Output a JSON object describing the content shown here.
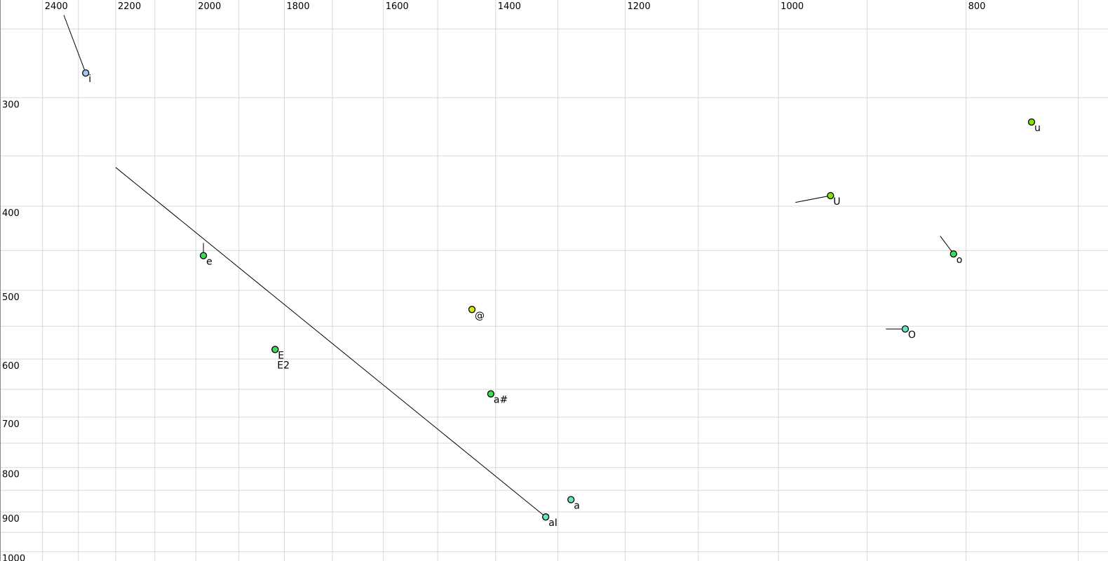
{
  "chart_data": {
    "type": "scatter",
    "title": "",
    "xlabel": "",
    "ylabel": "",
    "grid": true,
    "legend": false,
    "background": "#ffffff",
    "grid_color": "#d8d8d8",
    "axis_edge_color": "#888888",
    "point_outline": "#000000",
    "trajectory_color": "#000000",
    "x_axis": {
      "scale": "log",
      "reversed": true,
      "min": 675,
      "max": 2525,
      "tick_side": "top",
      "tick_labels": [
        2400,
        2200,
        2000,
        1800,
        1600,
        1400,
        1200,
        1000,
        800
      ],
      "gridline_step": 100,
      "gridline_min": 700,
      "gridline_max": 2400
    },
    "y_axis": {
      "scale": "log",
      "inverted": true,
      "min": 231,
      "max": 1025,
      "tick_side": "left",
      "tick_labels": [
        300,
        400,
        500,
        600,
        700,
        800,
        900,
        1000
      ],
      "gridline_step": 50,
      "gridline_min": 250,
      "gridline_max": 1000
    },
    "palette": {
      "blue": "#a3c7f0",
      "green": "#3cdd52",
      "yellowgreen": "#7fe303",
      "yellow": "#d9e515",
      "turquoise": "#63e6c8"
    },
    "points": [
      {
        "label": "i",
        "f2": 2280,
        "f1": 281,
        "color": "blue",
        "onset": {
          "f2": 2340,
          "f1": 241
        }
      },
      {
        "label": "e",
        "f2": 1982,
        "f1": 456,
        "color": "green",
        "onset": {
          "f2": 1982,
          "f1": 441
        }
      },
      {
        "label": "E",
        "f2": 1820,
        "f1": 585,
        "color": "green",
        "onset": null
      },
      {
        "label": "E2",
        "f2": 1820,
        "f1": 585,
        "color": "green",
        "onset": null,
        "label_dx": 3,
        "label_dy": 27
      },
      {
        "label": "@",
        "f2": 1440,
        "f1": 526,
        "color": "yellow",
        "onset": null
      },
      {
        "label": "a#",
        "f2": 1408,
        "f1": 658,
        "color": "green",
        "onset": null
      },
      {
        "label": "aI",
        "f2": 1319,
        "f1": 912,
        "color": "turquoise",
        "onset": {
          "f2": 2200,
          "f1": 361
        }
      },
      {
        "label": "a",
        "f2": 1280,
        "f1": 871,
        "color": "turquoise",
        "onset": null
      },
      {
        "label": "U",
        "f2": 940,
        "f1": 389,
        "color": "yellowgreen",
        "onset": {
          "f2": 980,
          "f1": 396
        }
      },
      {
        "label": "u",
        "f2": 740,
        "f1": 320,
        "color": "yellowgreen",
        "onset": null
      },
      {
        "label": "o",
        "f2": 812,
        "f1": 454,
        "color": "green",
        "onset": {
          "f2": 825,
          "f1": 433
        }
      },
      {
        "label": "O",
        "f2": 860,
        "f1": 554,
        "color": "turquoise",
        "onset": {
          "f2": 880,
          "f1": 554
        }
      }
    ]
  }
}
